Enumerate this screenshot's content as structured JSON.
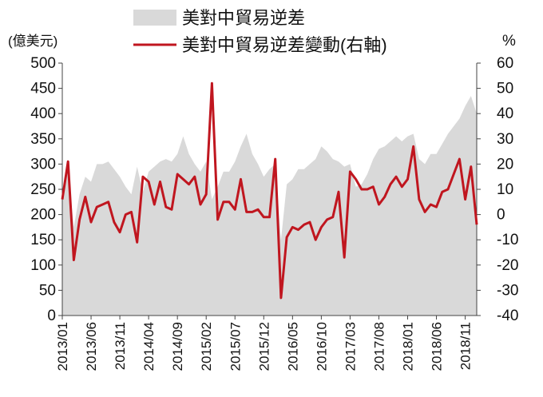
{
  "chart_data": {
    "type": "area+line",
    "title": "",
    "left_axis": {
      "label": "(億美元)",
      "min": 0,
      "max": 500,
      "ticks": [
        0,
        50,
        100,
        150,
        200,
        250,
        300,
        350,
        400,
        450,
        500
      ]
    },
    "right_axis": {
      "label": "%",
      "min": -40,
      "max": 60,
      "ticks": [
        -40,
        -30,
        -20,
        -10,
        0,
        10,
        20,
        30,
        40,
        50,
        60
      ]
    },
    "x_ticks": [
      "2013/01",
      "2013/06",
      "2013/11",
      "2014/04",
      "2014/09",
      "2015/02",
      "2015/07",
      "2015/12",
      "2016/05",
      "2016/10",
      "2017/03",
      "2017/08",
      "2018/01",
      "2018/06",
      "2018/11"
    ],
    "x_tick_index": [
      0,
      5,
      10,
      15,
      20,
      25,
      30,
      35,
      40,
      45,
      50,
      55,
      60,
      65,
      70
    ],
    "months": [
      "2013/01",
      "2013/02",
      "2013/03",
      "2013/04",
      "2013/05",
      "2013/06",
      "2013/07",
      "2013/08",
      "2013/09",
      "2013/10",
      "2013/11",
      "2013/12",
      "2014/01",
      "2014/02",
      "2014/03",
      "2014/04",
      "2014/05",
      "2014/06",
      "2014/07",
      "2014/08",
      "2014/09",
      "2014/10",
      "2014/11",
      "2014/12",
      "2015/01",
      "2015/02",
      "2015/03",
      "2015/04",
      "2015/05",
      "2015/06",
      "2015/07",
      "2015/08",
      "2015/09",
      "2015/10",
      "2015/11",
      "2015/12",
      "2016/01",
      "2016/02",
      "2016/03",
      "2016/04",
      "2016/05",
      "2016/06",
      "2016/07",
      "2016/08",
      "2016/09",
      "2016/10",
      "2016/11",
      "2016/12",
      "2017/01",
      "2017/02",
      "2017/03",
      "2017/04",
      "2017/05",
      "2017/06",
      "2017/07",
      "2017/08",
      "2017/09",
      "2017/10",
      "2017/11",
      "2017/12",
      "2018/01",
      "2018/02",
      "2018/03",
      "2018/04",
      "2018/05",
      "2018/06",
      "2018/07",
      "2018/08",
      "2018/09",
      "2018/10",
      "2018/11",
      "2018/12",
      "2019/01"
    ],
    "series": [
      {
        "name": "美對中貿易逆差",
        "axis": "left",
        "type": "area",
        "color": "#d9d9d9",
        "values": [
          235,
          290,
          175,
          240,
          275,
          265,
          300,
          300,
          305,
          290,
          275,
          255,
          240,
          295,
          245,
          285,
          295,
          305,
          310,
          305,
          320,
          355,
          320,
          300,
          285,
          305,
          230,
          255,
          285,
          285,
          305,
          335,
          360,
          320,
          300,
          275,
          290,
          300,
          150,
          260,
          270,
          290,
          290,
          300,
          310,
          335,
          325,
          310,
          305,
          295,
          300,
          255,
          260,
          280,
          310,
          330,
          335,
          345,
          355,
          345,
          355,
          360,
          310,
          300,
          320,
          320,
          340,
          360,
          375,
          390,
          415,
          435,
          400
        ]
      },
      {
        "name": "美對中貿易逆差變動(右軸)",
        "axis": "right",
        "type": "line",
        "color": "#c0161f",
        "values": [
          6,
          21,
          -18,
          -2,
          7,
          -3,
          3,
          4,
          5,
          -3,
          -7,
          0,
          1,
          -11,
          15,
          13,
          4,
          13,
          3,
          2,
          16,
          14,
          12,
          15,
          4,
          8,
          52,
          -2,
          5,
          5,
          2,
          14,
          1,
          1,
          2,
          -1,
          -1,
          22,
          -33,
          -9,
          -5,
          -6,
          -4,
          -3,
          -10,
          -5,
          -2,
          -1,
          9,
          -17,
          17,
          14,
          10,
          10,
          11,
          4,
          7,
          12,
          15,
          11,
          14,
          27,
          6,
          1,
          4,
          3,
          9,
          10,
          16,
          22,
          6,
          19,
          -4
        ]
      }
    ],
    "legend_position": "top-center",
    "grid": false
  }
}
